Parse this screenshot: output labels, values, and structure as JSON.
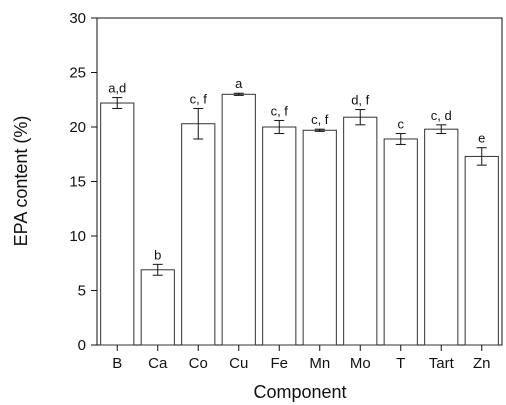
{
  "chart_data": {
    "type": "bar",
    "title": "",
    "xlabel": "Component",
    "ylabel": "EPA content (%)",
    "ylim": [
      0,
      30
    ],
    "yticks": [
      0,
      5,
      10,
      15,
      20,
      25,
      30
    ],
    "grid": false,
    "categories": [
      "B",
      "Ca",
      "Co",
      "Cu",
      "Fe",
      "Mn",
      "Mo",
      "T",
      "Tart",
      "Zn"
    ],
    "values": [
      22.2,
      6.9,
      20.3,
      23.0,
      20.0,
      19.7,
      20.9,
      18.9,
      19.8,
      17.3
    ],
    "errors": [
      0.5,
      0.5,
      1.4,
      0.1,
      0.6,
      0.1,
      0.7,
      0.5,
      0.4,
      0.8
    ],
    "significance_labels": [
      "a,d",
      "b",
      "c, f",
      "a",
      "c, f",
      "c, f",
      "d, f",
      "c",
      "c, d",
      "e"
    ]
  },
  "colors": {
    "bar_fill": "#ffffff",
    "bar_stroke": "#333333",
    "axis": "#111111"
  }
}
